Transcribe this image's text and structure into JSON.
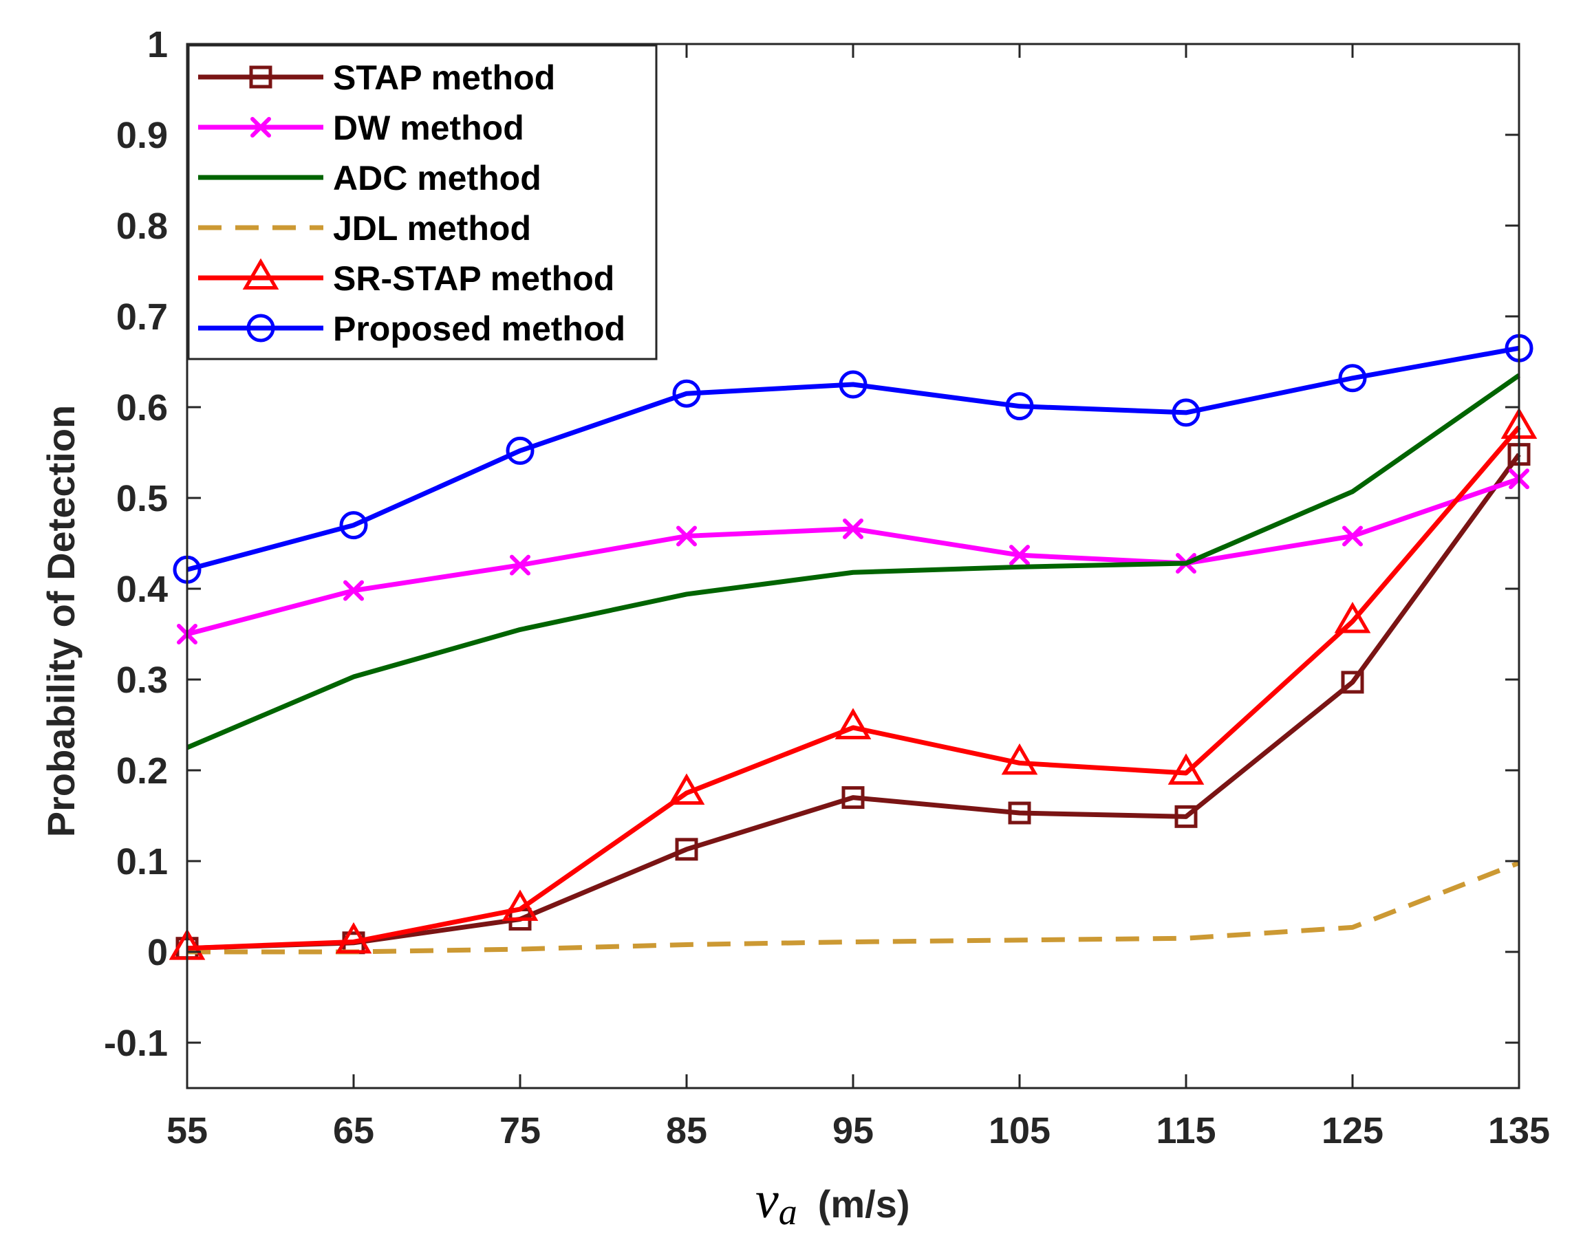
{
  "chart_data": {
    "type": "line",
    "title": "",
    "xlabel": {
      "var": "v",
      "sub": "a",
      "unit": "(m/s)"
    },
    "ylabel": "Probability of Detection",
    "x": [
      55,
      65,
      75,
      85,
      95,
      105,
      115,
      125,
      135
    ],
    "xlim": [
      55,
      135
    ],
    "ylim": [
      -0.15,
      1
    ],
    "xticks": [
      55,
      65,
      75,
      85,
      95,
      105,
      115,
      125,
      135
    ],
    "xtick_labels": [
      "55",
      "65",
      "75",
      "85",
      "95",
      "105",
      "115",
      "125",
      "135"
    ],
    "yticks": [
      -0.1,
      0,
      0.1,
      0.2,
      0.3,
      0.4,
      0.5,
      0.6,
      0.7,
      0.8,
      0.9,
      1
    ],
    "ytick_labels": [
      "-0.1",
      "0",
      "0.1",
      "0.2",
      "0.3",
      "0.4",
      "0.5",
      "0.6",
      "0.7",
      "0.8",
      "0.9",
      "1"
    ],
    "grid": false,
    "legend_position": "top-left",
    "series": [
      {
        "name": "STAP method",
        "color": "#7a1414",
        "dash": "solid",
        "marker": "square",
        "values": [
          0.004,
          0.01,
          0.036,
          0.113,
          0.17,
          0.153,
          0.149,
          0.297,
          0.548
        ]
      },
      {
        "name": "DW method",
        "color": "#ff00ff",
        "dash": "solid",
        "marker": "x",
        "values": [
          0.35,
          0.398,
          0.426,
          0.458,
          0.466,
          0.437,
          0.428,
          0.458,
          0.521
        ]
      },
      {
        "name": "ADC method",
        "color": "#006400",
        "dash": "solid",
        "marker": "none",
        "values": [
          0.225,
          0.303,
          0.355,
          0.394,
          0.418,
          0.424,
          0.428,
          0.507,
          0.635
        ]
      },
      {
        "name": "JDL method",
        "color": "#cc9933",
        "dash": "dashed",
        "marker": "none",
        "values": [
          0.0,
          0.0,
          0.003,
          0.008,
          0.011,
          0.013,
          0.015,
          0.027,
          0.098
        ]
      },
      {
        "name": "SR-STAP method",
        "color": "#ff0000",
        "dash": "solid",
        "marker": "triangle",
        "values": [
          0.004,
          0.011,
          0.047,
          0.175,
          0.247,
          0.208,
          0.197,
          0.364,
          0.578
        ]
      },
      {
        "name": "Proposed method",
        "color": "#0000ff",
        "dash": "solid",
        "marker": "circle",
        "values": [
          0.421,
          0.47,
          0.552,
          0.615,
          0.625,
          0.601,
          0.594,
          0.632,
          0.665
        ]
      }
    ]
  }
}
